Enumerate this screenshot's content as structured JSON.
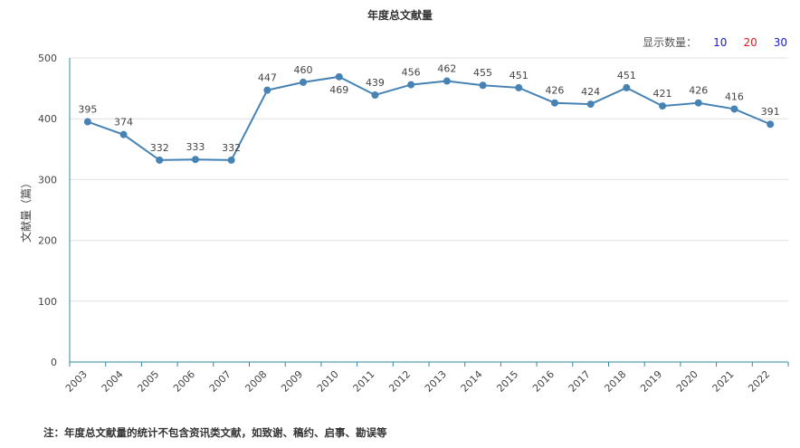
{
  "chart_data": {
    "type": "line",
    "title": "年度总文献量",
    "ylabel": "文献量（篇）",
    "xlabel": "",
    "ylim": [
      0,
      500
    ],
    "yticks": [
      0,
      100,
      200,
      300,
      400,
      500
    ],
    "grid": true,
    "categories": [
      "2003",
      "2004",
      "2005",
      "2006",
      "2007",
      "2008",
      "2009",
      "2010",
      "2011",
      "2012",
      "2013",
      "2014",
      "2015",
      "2016",
      "2017",
      "2018",
      "2019",
      "2020",
      "2021",
      "2022"
    ],
    "series": [
      {
        "values": [
          395,
          374,
          332,
          333,
          332,
          447,
          460,
          469,
          439,
          456,
          462,
          455,
          451,
          426,
          424,
          451,
          421,
          426,
          416,
          391
        ]
      }
    ],
    "colors": {
      "line": "#4682b4",
      "axis": "#2f8a9e",
      "grid": "#e0e0e0"
    }
  },
  "controls": {
    "label": "显示数量：",
    "options": [
      "10",
      "20",
      "30"
    ],
    "option_colors": [
      "#1a1acc",
      "#d81e1e",
      "#1a1acc"
    ]
  },
  "footnote": "注：年度总文献量的统计不包含资讯类文献，如致谢、稿约、启事、勘误等"
}
